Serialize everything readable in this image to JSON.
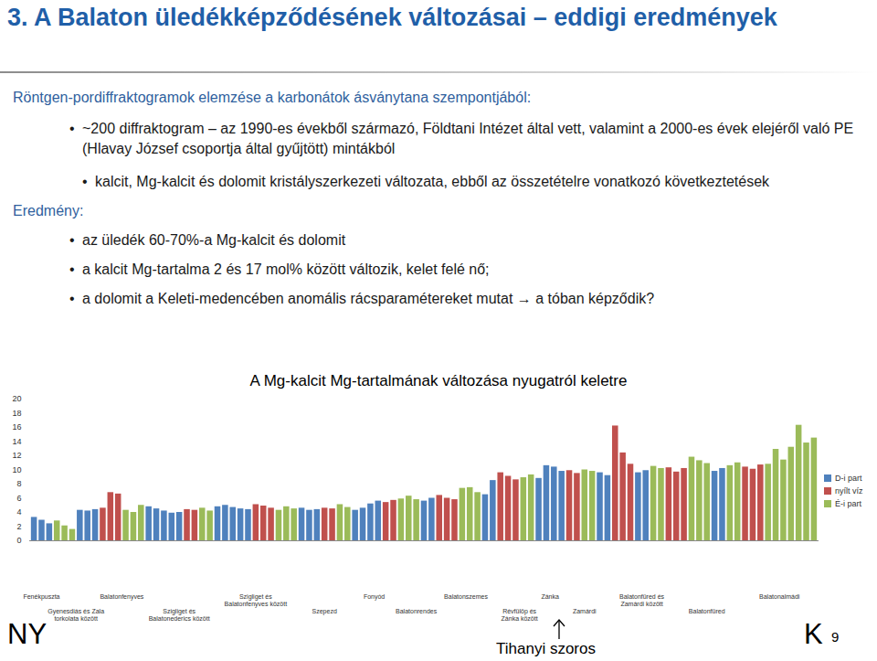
{
  "slide": {
    "title": "3. A Balaton üledékképződésének változásai – eddigi eredmények",
    "intro": "Röntgen-pordiffraktogramok elemzése a karbonátok ásványtana szempontjából:",
    "method": [
      "~200 diffraktogram – az 1990-es évekből származó, Földtani Intézet által vett, valamint a 2000-es évek elejéről való PE (Hlavay József csoportja által gyűjtött) mintákból"
    ],
    "method_detail": [
      "kalcit, Mg-kalcit és dolomit kristályszerkezeti változata, ebből az összetételre vonatkozó következtetések"
    ],
    "result_label": "Eredmény:",
    "results": [
      "az üledék 60-70%-a Mg-kalcit és dolomit",
      "a kalcit Mg-tartalma 2 és 17 mol% között változik, kelet felé nő;",
      "a dolomit a Keleti-medencében anomális rácsparamétereket mutat → a tóban képződik?"
    ],
    "footer": {
      "left": "NY",
      "center": "Tihanyi szoros",
      "right": "K",
      "page": "9"
    }
  },
  "chart_data": {
    "type": "bar",
    "title": "A Mg-kalcit Mg-tartalmának változása nyugatról keletre",
    "categories": [
      null,
      null,
      null,
      null,
      null,
      null,
      null,
      null,
      null,
      null,
      null,
      null,
      null,
      null,
      null,
      null,
      null,
      null,
      null,
      null,
      null,
      null,
      null,
      null,
      null,
      null,
      null,
      null,
      null,
      null,
      null,
      null,
      null,
      null,
      null,
      null,
      null,
      null,
      null,
      null,
      null,
      null,
      null,
      null,
      null,
      null,
      null,
      null,
      null,
      null,
      null,
      null,
      null,
      null,
      null,
      null,
      null,
      null,
      null,
      null,
      null,
      null,
      null,
      null,
      null,
      null,
      null,
      null,
      null,
      null,
      null,
      null,
      null,
      null,
      null,
      null,
      null,
      null,
      null,
      null,
      null,
      null,
      null,
      null,
      null,
      null,
      null,
      null,
      null,
      null,
      null,
      null,
      null,
      null,
      null,
      null,
      null,
      null,
      null,
      null,
      null,
      null,
      null
    ],
    "series": [
      {
        "name": "D-i part",
        "color": "#4f81bd",
        "values": [
          3.3,
          2.9,
          2.4,
          null,
          null,
          null,
          4.3,
          4.2,
          4.4,
          null,
          null,
          null,
          null,
          null,
          null,
          4.8,
          4.5,
          4.2,
          3.9,
          4.0,
          null,
          null,
          null,
          null,
          4.8,
          5.0,
          4.7,
          4.5,
          4.4,
          null,
          null,
          null,
          null,
          null,
          null,
          4.6,
          4.3,
          4.4,
          null,
          null,
          null,
          null,
          4.3,
          4.6,
          5.2,
          5.6,
          null,
          null,
          null,
          null,
          null,
          5.6,
          6.0,
          null,
          null,
          null,
          null,
          null,
          null,
          6.5,
          8.5,
          null,
          null,
          null,
          null,
          null,
          8.8,
          10.6,
          10.4,
          9.8,
          null,
          null,
          null,
          null,
          9.6,
          9.2,
          null,
          null,
          null,
          9.6,
          9.9,
          null,
          null,
          null,
          null,
          null,
          null,
          null,
          null,
          9.8,
          10.2,
          null,
          null,
          null,
          null,
          null,
          null,
          null,
          null,
          null,
          null,
          null,
          null
        ]
      },
      {
        "name": "nyílt víz",
        "color": "#c0504d",
        "values": [
          null,
          null,
          null,
          null,
          null,
          null,
          null,
          null,
          null,
          4.6,
          6.8,
          6.6,
          null,
          null,
          null,
          null,
          null,
          null,
          null,
          null,
          4.4,
          4.3,
          null,
          null,
          null,
          null,
          null,
          null,
          null,
          5.1,
          4.9,
          4.6,
          null,
          null,
          null,
          null,
          null,
          null,
          4.6,
          4.5,
          null,
          null,
          null,
          null,
          null,
          null,
          5.4,
          5.7,
          null,
          null,
          null,
          null,
          null,
          6.4,
          6.0,
          5.8,
          null,
          null,
          null,
          null,
          null,
          9.6,
          9.1,
          8.6,
          null,
          null,
          null,
          null,
          null,
          null,
          9.9,
          9.5,
          null,
          null,
          null,
          null,
          16.2,
          12.4,
          10.8,
          null,
          null,
          null,
          null,
          10.3,
          9.7,
          10.2,
          null,
          null,
          null,
          null,
          null,
          null,
          null,
          10.4,
          10.1,
          10.7,
          null,
          null,
          null,
          null,
          null,
          null,
          null
        ]
      },
      {
        "name": "É-i part",
        "color": "#9bbb59",
        "values": [
          null,
          null,
          null,
          2.8,
          2.1,
          1.6,
          null,
          null,
          null,
          null,
          null,
          null,
          4.3,
          4.0,
          5.0,
          null,
          null,
          null,
          null,
          null,
          null,
          null,
          4.6,
          4.2,
          null,
          null,
          null,
          null,
          null,
          null,
          null,
          null,
          4.3,
          4.8,
          4.5,
          null,
          null,
          null,
          null,
          null,
          5.1,
          4.7,
          null,
          null,
          null,
          null,
          null,
          null,
          5.9,
          6.3,
          5.8,
          null,
          null,
          null,
          null,
          null,
          7.4,
          7.5,
          6.8,
          null,
          null,
          null,
          null,
          null,
          8.9,
          9.3,
          null,
          null,
          null,
          null,
          null,
          null,
          10.0,
          9.8,
          null,
          null,
          null,
          null,
          null,
          null,
          null,
          10.5,
          10.2,
          null,
          null,
          null,
          11.8,
          11.3,
          10.9,
          null,
          null,
          10.6,
          11.0,
          null,
          null,
          null,
          10.8,
          12.9,
          11.4,
          13.2,
          16.3,
          13.8,
          14.5
        ]
      }
    ],
    "groups": [
      {
        "label": "Fenékpuszta",
        "start": 0,
        "end": 2
      },
      {
        "label": "Gyenesdiás és Zala torkolata között",
        "start": 3,
        "end": 8
      },
      {
        "label": "Balatonfenyves",
        "start": 9,
        "end": 14
      },
      {
        "label": "Szigliget és Balatonederics között",
        "start": 15,
        "end": 23
      },
      {
        "label": "Szigliget és Balatonfenyves között",
        "start": 24,
        "end": 34
      },
      {
        "label": "Szepezd",
        "start": 35,
        "end": 41
      },
      {
        "label": "Fonyód",
        "start": 42,
        "end": 47
      },
      {
        "label": "Balatonrendes",
        "start": 48,
        "end": 52
      },
      {
        "label": "Balatonszemes",
        "start": 53,
        "end": 60
      },
      {
        "label": "Révfülöp és Zánka között",
        "start": 61,
        "end": 66
      },
      {
        "label": "Zánka",
        "start": 67,
        "end": 68
      },
      {
        "label": "Zamárdi",
        "start": 69,
        "end": 75
      },
      {
        "label": "Balatonfüred és Zamárdi között",
        "start": 76,
        "end": 83
      },
      {
        "label": "Balatonfüred",
        "start": 84,
        "end": 92
      },
      {
        "label": "Balatonalmádi",
        "start": 93,
        "end": 102
      }
    ],
    "ylim": [
      0,
      20
    ],
    "yticks": [
      0,
      2,
      4,
      6,
      8,
      10,
      12,
      14,
      16,
      18,
      20
    ],
    "grid": false,
    "legend": "right",
    "data_labels": false
  }
}
